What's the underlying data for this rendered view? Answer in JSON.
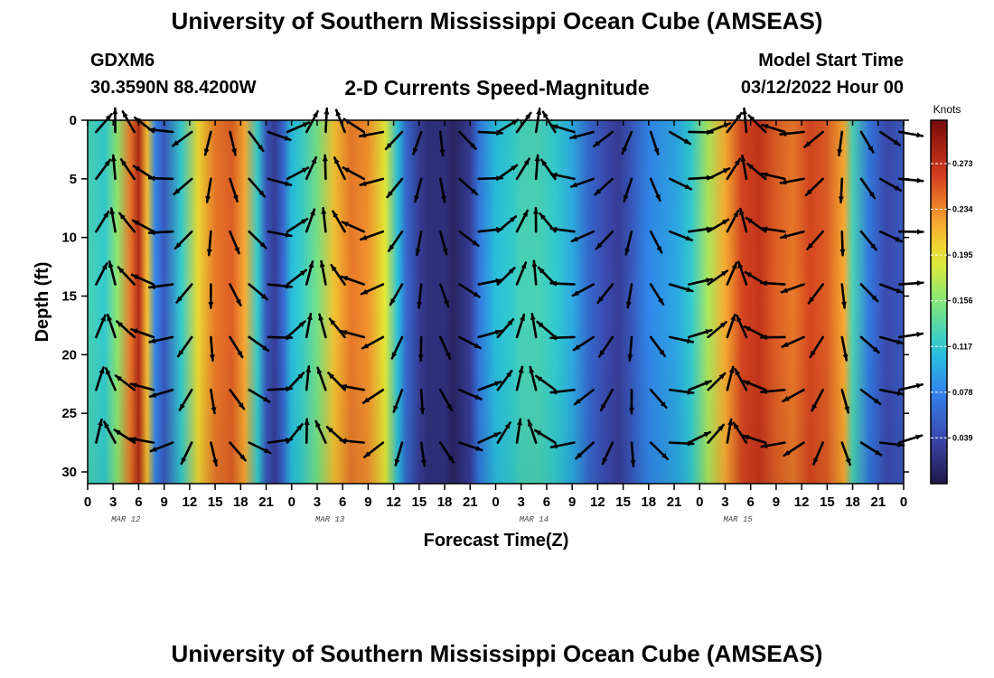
{
  "header": {
    "title": "University of Southern Mississippi Ocean Cube (AMSEAS)",
    "station": "GDXM6",
    "latlon": "30.3590N  88.4200W",
    "subtitle": "2-D Currents Speed-Magnitude",
    "start_label": "Model Start Time",
    "start_time": "03/12/2022 Hour 00"
  },
  "footer": {
    "title": "University of Southern Mississippi Ocean Cube (AMSEAS)"
  },
  "chart_data": {
    "type": "heatmap",
    "title": "2-D Currents Speed-Magnitude",
    "xlabel": "Forecast Time(Z)",
    "ylabel": "Depth (ft)",
    "x_range_hours": [
      0,
      96
    ],
    "y_range_ft": [
      0,
      31
    ],
    "y_reversed": true,
    "x_tick_labels": [
      "0",
      "3",
      "6",
      "9",
      "12",
      "15",
      "18",
      "21",
      "0",
      "3",
      "6",
      "9",
      "12",
      "15",
      "18",
      "21",
      "0",
      "3",
      "6",
      "9",
      "12",
      "15",
      "18",
      "21",
      "0",
      "3",
      "6",
      "9",
      "12",
      "15",
      "18",
      "21",
      "0"
    ],
    "day_labels": [
      {
        "label": "MAR 12",
        "hour": 4.5
      },
      {
        "label": "MAR 13",
        "hour": 28.5
      },
      {
        "label": "MAR 14",
        "hour": 52.5
      },
      {
        "label": "MAR 15",
        "hour": 76.5
      }
    ],
    "y_ticks": [
      0,
      5,
      10,
      15,
      20,
      25,
      30
    ],
    "colorbar": {
      "units": "Knots",
      "min": 0.0,
      "max": 0.31,
      "tick_values": [
        0.273,
        0.234,
        0.195,
        0.156,
        0.117,
        0.078,
        0.039
      ],
      "tick_labels": [
        "0.273",
        "0.234",
        "0.195",
        "0.156",
        "0.117",
        "0.078",
        "0.039"
      ]
    },
    "speed_profile_hours": [
      0,
      2,
      3.5,
      5,
      6,
      7,
      8,
      9,
      11,
      13,
      15,
      17,
      18.5,
      20,
      21,
      22,
      23,
      24,
      25,
      27,
      29,
      31,
      33,
      35,
      36.5,
      37.5,
      39,
      40,
      42,
      43,
      44,
      45,
      46,
      48,
      50,
      51,
      53,
      55,
      57,
      59,
      61,
      62.5,
      64,
      66,
      68,
      69.5,
      71,
      73,
      75,
      77,
      79,
      81,
      83,
      85,
      87,
      89,
      90,
      92,
      94,
      96
    ],
    "speed_profile_knots": [
      0.13,
      0.12,
      0.16,
      0.24,
      0.28,
      0.21,
      0.08,
      0.05,
      0.12,
      0.2,
      0.24,
      0.25,
      0.22,
      0.12,
      0.05,
      0.03,
      0.06,
      0.11,
      0.12,
      0.15,
      0.21,
      0.24,
      0.23,
      0.19,
      0.11,
      0.06,
      0.03,
      0.02,
      0.02,
      0.01,
      0.02,
      0.03,
      0.07,
      0.11,
      0.12,
      0.13,
      0.13,
      0.12,
      0.1,
      0.06,
      0.04,
      0.03,
      0.05,
      0.08,
      0.09,
      0.1,
      0.12,
      0.17,
      0.22,
      0.26,
      0.27,
      0.25,
      0.24,
      0.26,
      0.25,
      0.22,
      0.13,
      0.07,
      0.04,
      0.05
    ],
    "vector_rows_ft": [
      1,
      5,
      9.5,
      14,
      18.5,
      23,
      27.5
    ]
  }
}
